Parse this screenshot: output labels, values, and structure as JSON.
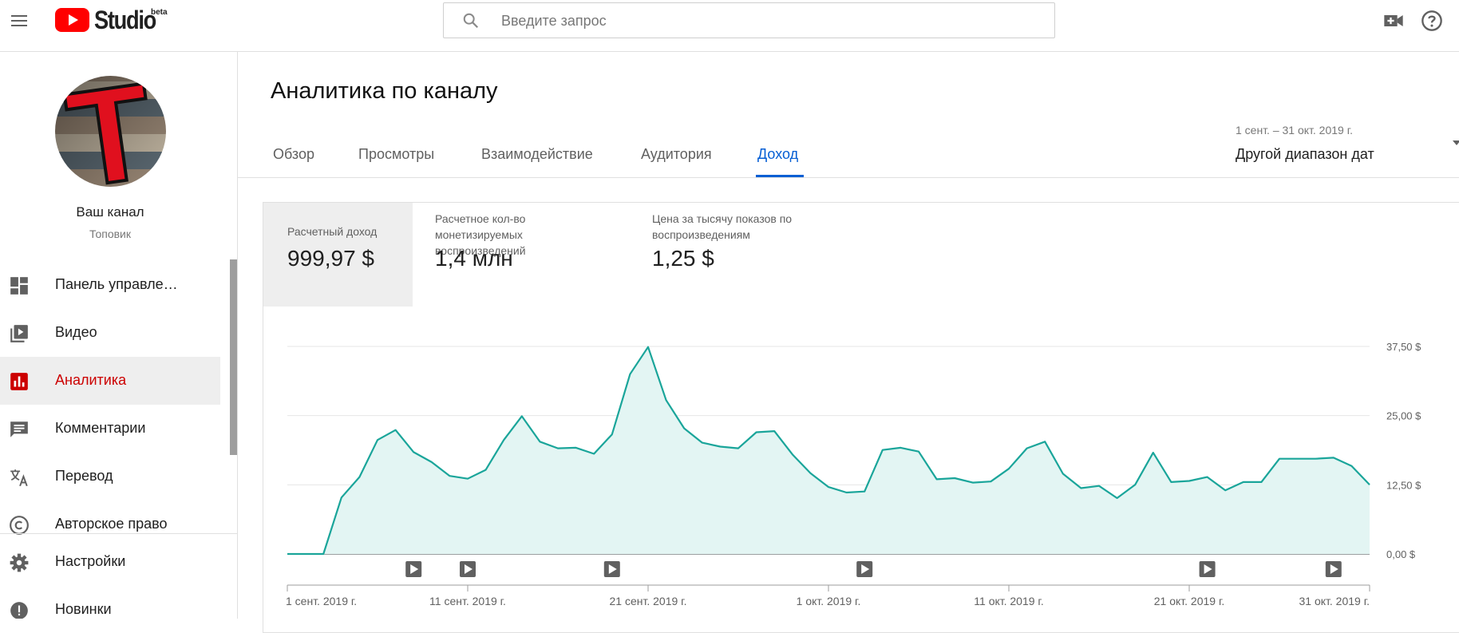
{
  "header": {
    "logo_text": "Studio",
    "logo_badge": "beta",
    "search_placeholder": "Введите запрос",
    "icons": [
      "menu-icon",
      "youtube-logo-icon",
      "search-icon",
      "create-video-icon",
      "help-icon"
    ]
  },
  "sidebar": {
    "channel_name": "Ваш канал",
    "channel_subtitle": "Топовик",
    "avatar_letter": "T",
    "items": [
      {
        "label": "Панель управле…",
        "icon": "dashboard-icon",
        "active": false
      },
      {
        "label": "Видео",
        "icon": "video-library-icon",
        "active": false
      },
      {
        "label": "Аналитика",
        "icon": "analytics-icon",
        "active": true
      },
      {
        "label": "Комментарии",
        "icon": "comments-icon",
        "active": false
      },
      {
        "label": "Перевод",
        "icon": "translate-icon",
        "active": false
      },
      {
        "label": "Авторское право",
        "icon": "copyright-icon",
        "active": false
      },
      {
        "label": "Настройки",
        "icon": "settings-icon",
        "active": false
      },
      {
        "label": "Новинки",
        "icon": "whats-new-icon",
        "active": false
      }
    ]
  },
  "main": {
    "title": "Аналитика по каналу",
    "tabs": [
      {
        "label": "Обзор",
        "active": false
      },
      {
        "label": "Просмотры",
        "active": false
      },
      {
        "label": "Взаимодействие",
        "active": false
      },
      {
        "label": "Аудитория",
        "active": false
      },
      {
        "label": "Доход",
        "active": true
      }
    ],
    "date_range": "1 сент. – 31 окт. 2019 г.",
    "date_select": "Другой диапазон дат"
  },
  "metrics": [
    {
      "label": "Расчетный доход",
      "value": "999,97 $",
      "selected": true
    },
    {
      "label": "Расчетное кол-во монетизируемых воспроизведений",
      "value": "1,4 млн",
      "selected": false
    },
    {
      "label": "Цена за тысячу показов по воспроизведениям",
      "value": "1,25 $",
      "selected": false
    }
  ],
  "colors": {
    "accent": "#065fd4",
    "brand_red": "#ff0000",
    "active_nav": "#cc0000",
    "chart_line": "#1aa59a",
    "chart_fill": "#e3f5f3"
  },
  "chart_data": {
    "type": "area",
    "series": [
      {
        "values": [
          0,
          0,
          0,
          10.2,
          13.9,
          20.6,
          22.4,
          18.4,
          16.6,
          14.1,
          13.6,
          15.2,
          20.6,
          24.9,
          20.3,
          19.1,
          19.2,
          18.1,
          21.6,
          32.5,
          37.4,
          27.8,
          22.7,
          20.1,
          19.4,
          19.1,
          22.0,
          22.2,
          18.0,
          14.6,
          12.1,
          11.1,
          11.3,
          18.8,
          19.2,
          18.5,
          13.5,
          13.7,
          12.9,
          13.1,
          15.4,
          19.1,
          20.3,
          14.5,
          11.9,
          12.3,
          10.1,
          12.5,
          18.3,
          13.0,
          13.2,
          13.9,
          11.5,
          13.0,
          13.0,
          17.2,
          17.2,
          17.2,
          17.4,
          15.9,
          12.5
        ]
      }
    ],
    "y_ticks": [
      "0,00 $",
      "12,50 $",
      "25,00 $",
      "37,50 $"
    ],
    "y_tick_values": [
      0,
      12.5,
      25,
      37.5
    ],
    "ylim": [
      0,
      37.5
    ],
    "x_tick_labels": [
      {
        "day": 0,
        "label": "1 сент. 2019 г."
      },
      {
        "day": 10,
        "label": "11 сент. 2019 г."
      },
      {
        "day": 20,
        "label": "21 сент. 2019 г."
      },
      {
        "day": 30,
        "label": "1 окт. 2019 г."
      },
      {
        "day": 40,
        "label": "11 окт. 2019 г."
      },
      {
        "day": 50,
        "label": "21 окт. 2019 г."
      },
      {
        "day": 60,
        "label": "31 окт. 2019 г."
      }
    ],
    "video_markers_day": [
      7,
      10,
      18,
      32,
      51,
      58
    ],
    "grid": true
  }
}
